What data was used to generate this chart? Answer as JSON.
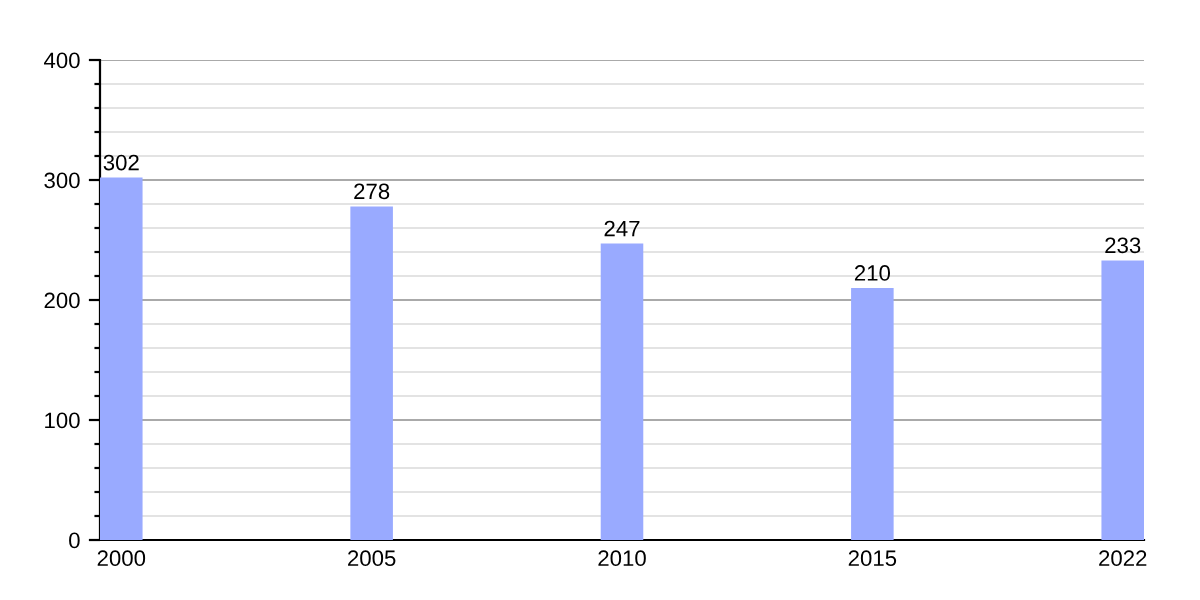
{
  "chart_data": {
    "type": "bar",
    "categories": [
      "2000",
      "2005",
      "2010",
      "2015",
      "2022"
    ],
    "values": [
      302,
      278,
      247,
      210,
      233
    ],
    "color": "#99aaff",
    "data_labels": true,
    "ylim": [
      0,
      400
    ],
    "yticks": [
      0,
      {
        "value": 20,
        "label": null
      },
      {
        "value": 40,
        "label": null
      },
      {
        "value": 60,
        "label": null
      },
      {
        "value": 80,
        "label": null
      },
      100,
      {
        "value": 120,
        "label": null
      },
      {
        "value": 140,
        "label": null
      },
      {
        "value": 160,
        "label": null
      },
      {
        "value": 180,
        "label": null
      },
      200,
      {
        "value": 220,
        "label": null
      },
      {
        "value": 240,
        "label": null
      },
      {
        "value": 260,
        "label": null
      },
      {
        "value": 280,
        "label": null
      },
      300,
      {
        "value": 320,
        "label": null
      },
      {
        "value": 340,
        "label": null
      },
      {
        "value": 360,
        "label": null
      },
      {
        "value": 380,
        "label": null
      },
      400
    ],
    "grid": "y"
  }
}
